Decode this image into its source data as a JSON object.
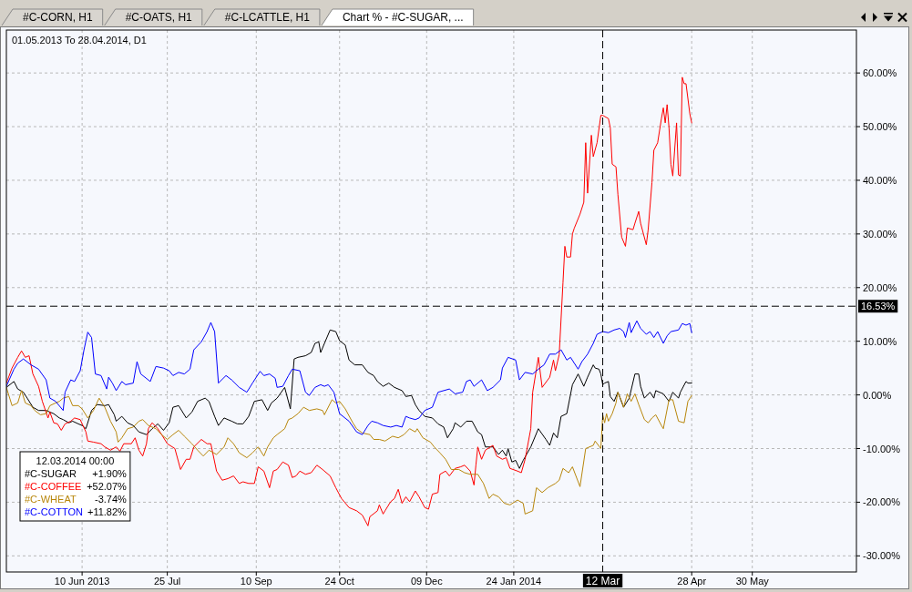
{
  "chart_data": {
    "type": "line",
    "title": "01.05.2013 To 28.04.2014, D1",
    "legend_title": "12.03.2014 00:00",
    "legend": "bottom left",
    "grid": true,
    "annotations": [
      "#C-CORN, H1",
      "#C-OATS, H1",
      "#C-LCATTLE, H1",
      "Chart % - #C-SUGAR, ..."
    ],
    "xlim": [
      "2013-05-01",
      "2014-07-24"
    ],
    "ylim": [
      -33,
      68
    ],
    "xticks": [
      {
        "value": "2013-06-10",
        "label": "10 Jun 2013"
      },
      {
        "value": "2013-07-25",
        "label": "25 Jul"
      },
      {
        "value": "2013-09-10",
        "label": "10 Sep"
      },
      {
        "value": "2013-10-24",
        "label": "24 Oct"
      },
      {
        "value": "2013-12-09",
        "label": "09 Dec"
      },
      {
        "value": "2014-01-24",
        "label": "24 Jan 2014"
      },
      {
        "value": "2014-04-28",
        "label": "28 Apr"
      },
      {
        "value": "2014-05-30",
        "label": "30 May"
      }
    ],
    "yticks": [
      {
        "value": -30,
        "label": "-30.00%"
      },
      {
        "value": -20,
        "label": "-20.00%"
      },
      {
        "value": -10,
        "label": "-10.00%"
      },
      {
        "value": 0,
        "label": "0.00%"
      },
      {
        "value": 10,
        "label": "10.00%"
      },
      {
        "value": 20,
        "label": "20.00%"
      },
      {
        "value": 30,
        "label": "30.00%"
      },
      {
        "value": 40,
        "label": "40.00%"
      },
      {
        "value": 50,
        "label": "50.00%"
      },
      {
        "value": 60,
        "label": "60.00%"
      }
    ],
    "ref_lines": [
      {
        "axis": "y",
        "value": 16.53,
        "label": "16.53%",
        "color": "#000000",
        "line_style": "dashed"
      },
      {
        "axis": "x",
        "value": "2014-03-12",
        "label": "12 Mar",
        "color": "#000000",
        "line_style": "dashed"
      }
    ],
    "series": [
      {
        "name": "#C-SUGAR +1.90%",
        "color": "#000000",
        "x": [
          "2013-05-01",
          "2013-05-05",
          "2013-05-07",
          "2013-05-10",
          "2013-05-12",
          "2013-05-15",
          "2013-05-18",
          "2013-05-22",
          "2013-05-26",
          "2013-05-29",
          "2013-05-31",
          "2013-06-03",
          "2013-06-05",
          "2013-06-08",
          "2013-06-10",
          "2013-06-12",
          "2013-06-15",
          "2013-06-18",
          "2013-06-22",
          "2013-06-24",
          "2013-06-27",
          "2013-06-28",
          "2013-07-01",
          "2013-07-04",
          "2013-07-07",
          "2013-07-10",
          "2013-07-14",
          "2013-07-17",
          "2013-07-20",
          "2013-07-23",
          "2013-07-26",
          "2013-07-28",
          "2013-07-31",
          "2013-08-04",
          "2013-08-07",
          "2013-08-10",
          "2013-08-14",
          "2013-08-16",
          "2013-08-19",
          "2013-08-21",
          "2013-08-24",
          "2013-08-28",
          "2013-08-31",
          "2013-09-03",
          "2013-09-06",
          "2013-09-09",
          "2013-09-13",
          "2013-09-16",
          "2013-09-18",
          "2013-09-21",
          "2013-09-25",
          "2013-09-28",
          "2013-09-30",
          "2013-10-02",
          "2013-10-06",
          "2013-10-09",
          "2013-10-11",
          "2013-10-13",
          "2013-10-14",
          "2013-10-16",
          "2013-10-19",
          "2013-10-22",
          "2013-10-24",
          "2013-10-27",
          "2013-10-29",
          "2013-11-01",
          "2013-11-05",
          "2013-11-08",
          "2013-11-11",
          "2013-11-13",
          "2013-11-16",
          "2013-11-19",
          "2013-11-22",
          "2013-11-26",
          "2013-11-28",
          "2013-12-01",
          "2013-12-03",
          "2013-12-05",
          "2013-12-08",
          "2013-12-12",
          "2013-12-15",
          "2013-12-18",
          "2013-12-20",
          "2013-12-23",
          "2013-12-24",
          "2013-12-27",
          "2013-12-30",
          "2014-01-02",
          "2014-01-05",
          "2014-01-07",
          "2014-01-09",
          "2014-01-13",
          "2014-01-16",
          "2014-01-18",
          "2014-01-20",
          "2014-01-21",
          "2014-01-23",
          "2014-01-25",
          "2014-01-27",
          "2014-01-29",
          "2014-02-02",
          "2014-02-06",
          "2014-02-10",
          "2014-02-12",
          "2014-02-14",
          "2014-02-16",
          "2014-02-18",
          "2014-02-21",
          "2014-02-24",
          "2014-02-27",
          "2014-03-02",
          "2014-03-04",
          "2014-03-07",
          "2014-03-08",
          "2014-03-10",
          "2014-03-11",
          "2014-03-12",
          "2014-03-13",
          "2014-03-15",
          "2014-03-16",
          "2014-03-18",
          "2014-03-20",
          "2014-03-23",
          "2014-03-26",
          "2014-03-29",
          "2014-03-31",
          "2014-04-01",
          "2014-04-03",
          "2014-04-06",
          "2014-04-08",
          "2014-04-09",
          "2014-04-13",
          "2014-04-16",
          "2014-04-18",
          "2014-04-21",
          "2014-04-22",
          "2014-04-25",
          "2014-04-26",
          "2014-04-28"
        ],
        "values": [
          1.4,
          2.5,
          1.1,
          0.5,
          -0.6,
          -2.3,
          -2.9,
          -2.9,
          -3.5,
          -4.3,
          -4.6,
          -5.2,
          -4.9,
          -5.4,
          -5.7,
          -6.3,
          -2.9,
          -1.8,
          -2.0,
          -1.8,
          -3.7,
          -4.9,
          -4.0,
          -5.2,
          -5.7,
          -6.9,
          -7.4,
          -6.3,
          -5.4,
          -6.6,
          -5.2,
          -2.3,
          -2.0,
          -4.3,
          -3.2,
          -1.2,
          -0.6,
          -1.2,
          -4.0,
          -5.7,
          -4.3,
          -4.9,
          -5.4,
          -5.4,
          -4.0,
          -1.2,
          -0.9,
          -2.9,
          -1.5,
          -0.6,
          1.4,
          -2.6,
          6.7,
          7.0,
          7.3,
          7.9,
          9.6,
          9.9,
          7.9,
          9.6,
          12.1,
          11.8,
          10.1,
          9.3,
          6.5,
          5.6,
          5.6,
          4.2,
          3.6,
          2.5,
          1.6,
          2.2,
          1.4,
          0.8,
          -0.3,
          -0.1,
          -1.8,
          -2.9,
          -4.0,
          -4.3,
          -5.4,
          -6.0,
          -8.0,
          -6.3,
          -5.2,
          -6.0,
          -4.9,
          -4.9,
          -6.9,
          -7.4,
          -9.7,
          -9.7,
          -11.1,
          -10.3,
          -11.4,
          -10.0,
          -12.5,
          -12.2,
          -13.7,
          -12.2,
          -9.7,
          -6.3,
          -8.3,
          -9.4,
          -7.1,
          -8.0,
          -4.0,
          -3.5,
          1.9,
          3.9,
          1.6,
          3.3,
          5.6,
          5.0,
          4.8,
          3.9,
          1.9,
          2.2,
          2.5,
          -0.3,
          -1.2,
          0.5,
          -2.3,
          -0.6,
          3.9,
          3.9,
          1.6,
          -0.6,
          0.5,
          -0.6,
          0.8,
          0.2,
          -1.2,
          0.5,
          -0.6,
          0.5,
          2.5,
          2.2,
          2.2
        ]
      },
      {
        "name": "#C-COFFEE +52.07%",
        "color": "#ff0000",
        "x": [
          "2013-05-01",
          "2013-05-04",
          "2013-05-07",
          "2013-05-09",
          "2013-05-11",
          "2013-05-13",
          "2013-05-15",
          "2013-05-18",
          "2013-05-20",
          "2013-05-23",
          "2013-05-24",
          "2013-05-26",
          "2013-05-28",
          "2013-05-30",
          "2013-06-01",
          "2013-06-04",
          "2013-06-06",
          "2013-06-09",
          "2013-06-12",
          "2013-06-13",
          "2013-06-16",
          "2013-06-20",
          "2013-06-22",
          "2013-06-25",
          "2013-06-28",
          "2013-06-30",
          "2013-07-02",
          "2013-07-06",
          "2013-07-08",
          "2013-07-10",
          "2013-07-12",
          "2013-07-14",
          "2013-07-15",
          "2013-07-17",
          "2013-07-20",
          "2013-07-22",
          "2013-07-25",
          "2013-07-29",
          "2013-08-01",
          "2013-08-04",
          "2013-08-06",
          "2013-08-08",
          "2013-08-12",
          "2013-08-15",
          "2013-08-17",
          "2013-08-20",
          "2013-08-23",
          "2013-08-26",
          "2013-08-29",
          "2013-09-01",
          "2013-09-03",
          "2013-09-06",
          "2013-09-09",
          "2013-09-11",
          "2013-09-14",
          "2013-09-17",
          "2013-09-19",
          "2013-09-21",
          "2013-09-24",
          "2013-09-27",
          "2013-09-29",
          "2013-10-01",
          "2013-10-03",
          "2013-10-06",
          "2013-10-09",
          "2013-10-12",
          "2013-10-15",
          "2013-10-19",
          "2013-10-22",
          "2013-10-25",
          "2013-10-29",
          "2013-11-02",
          "2013-11-05",
          "2013-11-08",
          "2013-11-09",
          "2013-11-13",
          "2013-11-14",
          "2013-11-16",
          "2013-11-17",
          "2013-11-20",
          "2013-11-22",
          "2013-11-24",
          "2013-11-26",
          "2013-11-28",
          "2013-11-30",
          "2013-12-03",
          "2013-12-05",
          "2013-12-08",
          "2013-12-10",
          "2013-12-12",
          "2013-12-15",
          "2013-12-16",
          "2013-12-19",
          "2013-12-21",
          "2013-12-24",
          "2013-12-27",
          "2013-12-29",
          "2014-01-01",
          "2014-01-03",
          "2014-01-04",
          "2014-01-05",
          "2014-01-07",
          "2014-01-09",
          "2014-01-13",
          "2014-01-15",
          "2014-01-18",
          "2014-01-20",
          "2014-01-22",
          "2014-01-26",
          "2014-01-28",
          "2014-01-30",
          "2014-02-02",
          "2014-02-03",
          "2014-02-06",
          "2014-02-08",
          "2014-02-12",
          "2014-02-14",
          "2014-02-15",
          "2014-02-17",
          "2014-02-19",
          "2014-02-20",
          "2014-02-21",
          "2014-02-23",
          "2014-02-24",
          "2014-02-25",
          "2014-02-28",
          "2014-03-02",
          "2014-03-03",
          "2014-03-04",
          "2014-03-06",
          "2014-03-07",
          "2014-03-09",
          "2014-03-11",
          "2014-03-12",
          "2014-03-15",
          "2014-03-16",
          "2014-03-17",
          "2014-03-19",
          "2014-03-20",
          "2014-03-22",
          "2014-03-24",
          "2014-03-25",
          "2014-03-28",
          "2014-03-29",
          "2014-03-31",
          "2014-04-01",
          "2014-04-04",
          "2014-04-05",
          "2014-04-07",
          "2014-04-08",
          "2014-04-10",
          "2014-04-12",
          "2014-04-13",
          "2014-04-14",
          "2014-04-15",
          "2014-04-16",
          "2014-04-17",
          "2014-04-18",
          "2014-04-20",
          "2014-04-21",
          "2014-04-22",
          "2014-04-23",
          "2014-04-24",
          "2014-04-25",
          "2014-04-27",
          "2014-04-28"
        ],
        "values": [
          2.2,
          5.0,
          7.0,
          8.2,
          7.0,
          7.3,
          3.9,
          1.6,
          -1.2,
          -4.3,
          -3.2,
          -5.2,
          -5.4,
          -6.6,
          -5.4,
          -4.9,
          -4.3,
          -4.6,
          -6.9,
          -8.6,
          -8.8,
          -9.1,
          -9.7,
          -10.3,
          -9.7,
          -10.5,
          -9.1,
          -9.1,
          -8.0,
          -10.3,
          -11.4,
          -9.1,
          -6.3,
          -5.2,
          -6.3,
          -7.4,
          -9.1,
          -10.0,
          -13.9,
          -12.0,
          -12.0,
          -9.7,
          -8.3,
          -9.1,
          -9.1,
          -14.2,
          -15.9,
          -15.6,
          -15.1,
          -16.5,
          -16.2,
          -16.5,
          -16.5,
          -13.4,
          -14.2,
          -17.3,
          -14.2,
          -13.9,
          -12.5,
          -13.1,
          -15.4,
          -15.1,
          -14.2,
          -14.8,
          -14.5,
          -13.1,
          -13.9,
          -15.1,
          -17.3,
          -19.3,
          -21.0,
          -21.6,
          -22.4,
          -24.4,
          -22.7,
          -21.6,
          -20.5,
          -22.2,
          -21.6,
          -19.9,
          -19.3,
          -17.6,
          -20.2,
          -19.0,
          -19.9,
          -17.9,
          -19.0,
          -21.0,
          -21.3,
          -18.5,
          -18.2,
          -14.8,
          -14.2,
          -15.1,
          -13.7,
          -13.4,
          -13.1,
          -14.2,
          -16.8,
          -13.1,
          -9.7,
          -12.0,
          -10.3,
          -9.4,
          -11.4,
          -12.0,
          -11.7,
          -13.7,
          -14.2,
          -14.5,
          -12.0,
          -6.3,
          0.5,
          7.0,
          1.4,
          3.3,
          6.5,
          4.5,
          7.5,
          20.9,
          27.7,
          25.7,
          25.7,
          30.0,
          31.1,
          33.7,
          35.9,
          47.0,
          37.6,
          48.4,
          44.4,
          47.0,
          52.1,
          52.1,
          51.5,
          49.8,
          43.0,
          42.5,
          37.4,
          29.4,
          27.7,
          31.1,
          30.8,
          32.0,
          34.2,
          32.0,
          28.0,
          30.8,
          39.6,
          45.6,
          47.0,
          51.5,
          53.5,
          50.7,
          54.1,
          49.8,
          43.0,
          40.8,
          50.7,
          41.0,
          40.8,
          59.2,
          58.0,
          58.0,
          52.4,
          50.7
        ]
      },
      {
        "name": "#C-WHEAT -3.74%",
        "color": "#b8860b",
        "x": [
          "2013-05-01",
          "2013-05-04",
          "2013-05-07",
          "2013-05-09",
          "2013-05-11",
          "2013-05-14",
          "2013-05-16",
          "2013-05-19",
          "2013-05-22",
          "2013-05-24",
          "2013-05-27",
          "2013-05-29",
          "2013-05-31",
          "2013-06-03",
          "2013-06-05",
          "2013-06-08",
          "2013-06-10",
          "2013-06-13",
          "2013-06-16",
          "2013-06-19",
          "2013-06-22",
          "2013-06-25",
          "2013-06-28",
          "2013-06-29",
          "2013-07-01",
          "2013-07-04",
          "2013-07-07",
          "2013-07-10",
          "2013-07-12",
          "2013-07-15",
          "2013-07-19",
          "2013-07-22",
          "2013-07-25",
          "2013-07-28",
          "2013-07-31",
          "2013-08-03",
          "2013-08-07",
          "2013-08-10",
          "2013-08-13",
          "2013-08-16",
          "2013-08-20",
          "2013-08-24",
          "2013-08-26",
          "2013-08-29",
          "2013-09-01",
          "2013-09-05",
          "2013-09-08",
          "2013-09-11",
          "2013-09-14",
          "2013-09-16",
          "2013-09-19",
          "2013-09-21",
          "2013-09-25",
          "2013-09-27",
          "2013-09-29",
          "2013-10-02",
          "2013-10-05",
          "2013-10-08",
          "2013-10-12",
          "2013-10-15",
          "2013-10-16",
          "2013-10-20",
          "2013-10-22",
          "2013-10-24",
          "2013-10-27",
          "2013-10-31",
          "2013-11-02",
          "2013-11-05",
          "2013-11-09",
          "2013-11-11",
          "2013-11-14",
          "2013-11-17",
          "2013-11-21",
          "2013-11-24",
          "2013-11-27",
          "2013-11-30",
          "2013-12-03",
          "2013-12-04",
          "2013-12-07",
          "2013-12-11",
          "2013-12-13",
          "2013-12-16",
          "2013-12-19",
          "2013-12-22",
          "2013-12-26",
          "2013-12-29",
          "2014-01-01",
          "2014-01-05",
          "2014-01-08",
          "2014-01-11",
          "2014-01-13",
          "2014-01-16",
          "2014-01-19",
          "2014-01-22",
          "2014-01-26",
          "2014-01-29",
          "2014-01-30",
          "2014-02-03",
          "2014-02-05",
          "2014-02-08",
          "2014-02-11",
          "2014-02-15",
          "2014-02-17",
          "2014-02-19",
          "2014-02-22",
          "2014-02-24",
          "2014-02-28",
          "2014-03-03",
          "2014-03-07",
          "2014-03-08",
          "2014-03-11",
          "2014-03-12",
          "2014-03-13",
          "2014-03-14",
          "2014-03-15",
          "2014-03-17",
          "2014-03-19",
          "2014-03-20",
          "2014-03-22",
          "2014-03-23",
          "2014-03-25",
          "2014-03-27",
          "2014-03-29",
          "2014-03-31",
          "2014-04-03",
          "2014-04-05",
          "2014-04-07",
          "2014-04-09",
          "2014-04-12",
          "2014-04-13",
          "2014-04-16",
          "2014-04-18",
          "2014-04-21",
          "2014-04-24",
          "2014-04-26",
          "2014-04-28"
        ],
        "values": [
          1.4,
          -2.0,
          -1.5,
          0.8,
          -1.5,
          -2.0,
          -2.9,
          -3.7,
          -3.5,
          -2.0,
          -1.5,
          -1.2,
          -0.6,
          -0.3,
          -2.0,
          -2.0,
          -2.6,
          -4.3,
          -2.9,
          -0.6,
          -2.3,
          -4.9,
          -6.9,
          -8.8,
          -8.0,
          -6.3,
          -6.0,
          -4.9,
          -4.6,
          -5.7,
          -6.3,
          -7.4,
          -8.3,
          -7.4,
          -6.6,
          -7.7,
          -9.1,
          -10.3,
          -11.4,
          -10.3,
          -11.1,
          -9.7,
          -8.0,
          -9.1,
          -10.8,
          -11.7,
          -10.8,
          -9.7,
          -11.4,
          -9.7,
          -8.0,
          -7.4,
          -6.3,
          -4.6,
          -4.3,
          -3.5,
          -2.3,
          -2.9,
          -2.6,
          -2.9,
          -3.7,
          -0.9,
          -1.5,
          -1.2,
          -2.6,
          -5.2,
          -6.3,
          -7.1,
          -7.4,
          -8.3,
          -8.3,
          -8.6,
          -7.7,
          -8.0,
          -7.4,
          -6.3,
          -6.9,
          -6.3,
          -8.0,
          -8.8,
          -9.7,
          -10.8,
          -12.0,
          -13.9,
          -13.9,
          -14.5,
          -14.8,
          -14.8,
          -16.5,
          -19.3,
          -18.5,
          -19.0,
          -20.2,
          -20.5,
          -19.6,
          -20.2,
          -22.2,
          -21.6,
          -17.3,
          -18.2,
          -17.3,
          -16.5,
          -15.9,
          -13.7,
          -14.5,
          -13.4,
          -17.1,
          -10.0,
          -9.4,
          -8.6,
          -10.0,
          -3.7,
          -5.2,
          -3.5,
          -4.9,
          -3.5,
          -1.5,
          0.5,
          -1.2,
          -2.3,
          0.2,
          -1.2,
          0.2,
          -1.8,
          -4.6,
          -5.2,
          -4.3,
          -3.7,
          -5.7,
          -6.3,
          -0.9,
          -0.9,
          -4.9,
          -5.2,
          -1.2,
          -0.1
        ]
      },
      {
        "name": "#C-COTTON +11.82%",
        "color": "#0000ff",
        "x": [
          "2013-05-01",
          "2013-05-05",
          "2013-05-07",
          "2013-05-10",
          "2013-05-14",
          "2013-05-18",
          "2013-05-22",
          "2013-05-24",
          "2013-05-27",
          "2013-05-31",
          "2013-06-01",
          "2013-06-04",
          "2013-06-06",
          "2013-06-09",
          "2013-06-11",
          "2013-06-13",
          "2013-06-15",
          "2013-06-17",
          "2013-06-20",
          "2013-06-23",
          "2013-06-24",
          "2013-06-26",
          "2013-06-28",
          "2013-07-01",
          "2013-07-03",
          "2013-07-07",
          "2013-07-09",
          "2013-07-11",
          "2013-07-16",
          "2013-07-19",
          "2013-07-23",
          "2013-07-26",
          "2013-07-28",
          "2013-07-31",
          "2013-08-03",
          "2013-08-06",
          "2013-08-08",
          "2013-08-12",
          "2013-08-15",
          "2013-08-17",
          "2013-08-19",
          "2013-08-21",
          "2013-08-25",
          "2013-08-28",
          "2013-09-01",
          "2013-09-05",
          "2013-09-08",
          "2013-09-12",
          "2013-09-14",
          "2013-09-17",
          "2013-09-20",
          "2013-09-21",
          "2013-09-24",
          "2013-09-27",
          "2013-09-29",
          "2013-10-03",
          "2013-10-06",
          "2013-10-08",
          "2013-10-11",
          "2013-10-14",
          "2013-10-16",
          "2013-10-18",
          "2013-10-21",
          "2013-10-24",
          "2013-10-29",
          "2013-11-02",
          "2013-11-05",
          "2013-11-08",
          "2013-11-10",
          "2013-11-13",
          "2013-11-16",
          "2013-11-20",
          "2013-11-23",
          "2013-11-26",
          "2013-11-28",
          "2013-11-30",
          "2013-12-03",
          "2013-12-05",
          "2013-12-08",
          "2013-12-12",
          "2013-12-15",
          "2013-12-18",
          "2013-12-21",
          "2013-12-24",
          "2013-12-28",
          "2013-12-30",
          "2014-01-01",
          "2014-01-03",
          "2014-01-07",
          "2014-01-10",
          "2014-01-13",
          "2014-01-17",
          "2014-01-18",
          "2014-01-21",
          "2014-01-25",
          "2014-01-27",
          "2014-01-30",
          "2014-02-03",
          "2014-02-06",
          "2014-02-09",
          "2014-02-12",
          "2014-02-15",
          "2014-02-18",
          "2014-02-21",
          "2014-02-23",
          "2014-02-27",
          "2014-03-01",
          "2014-03-04",
          "2014-03-07",
          "2014-03-09",
          "2014-03-12",
          "2014-03-15",
          "2014-03-18",
          "2014-03-21",
          "2014-03-23",
          "2014-03-24",
          "2014-03-26",
          "2014-03-27",
          "2014-03-30",
          "2014-04-01",
          "2014-04-04",
          "2014-04-06",
          "2014-04-08",
          "2014-04-10",
          "2014-04-13",
          "2014-04-15",
          "2014-04-17",
          "2014-04-21",
          "2014-04-23",
          "2014-04-25",
          "2014-04-27",
          "2014-04-28"
        ],
        "values": [
          1.6,
          4.8,
          5.9,
          6.7,
          5.6,
          4.8,
          2.8,
          -0.6,
          -1.2,
          -2.9,
          0.5,
          2.8,
          2.5,
          4.5,
          8.4,
          11.7,
          10.7,
          3.9,
          3.6,
          1.1,
          3.3,
          2.2,
          0.8,
          2.5,
          1.9,
          2.2,
          6.2,
          3.9,
          2.5,
          5.3,
          5.0,
          4.5,
          3.6,
          4.2,
          3.9,
          4.8,
          8.4,
          9.9,
          11.8,
          13.5,
          11.8,
          2.2,
          3.6,
          2.8,
          1.4,
          0.5,
          2.2,
          4.4,
          3.6,
          3.9,
          3.1,
          1.4,
          1.6,
          3.6,
          4.8,
          4.5,
          0.5,
          -0.1,
          1.4,
          1.9,
          1.6,
          1.9,
          0.5,
          -3.5,
          -4.9,
          -6.9,
          -7.4,
          -5.7,
          -4.9,
          -5.2,
          -5.7,
          -6.0,
          -5.7,
          -6.0,
          -4.0,
          -4.3,
          -4.6,
          -4.3,
          -2.9,
          -2.3,
          0.5,
          0.8,
          1.1,
          0.2,
          0.5,
          2.5,
          2.8,
          1.6,
          2.8,
          0.8,
          1.4,
          2.8,
          5.0,
          7.0,
          6.5,
          2.8,
          4.2,
          3.9,
          4.8,
          5.6,
          7.6,
          7.6,
          8.4,
          6.5,
          7.0,
          4.8,
          6.2,
          7.6,
          9.6,
          11.3,
          11.8,
          11.6,
          12.1,
          12.4,
          11.8,
          10.7,
          13.5,
          11.6,
          13.8,
          12.4,
          11.3,
          11.8,
          10.7,
          11.8,
          9.6,
          11.0,
          11.8,
          12.1,
          13.3,
          13.0,
          13.3,
          11.6
        ]
      }
    ]
  }
}
